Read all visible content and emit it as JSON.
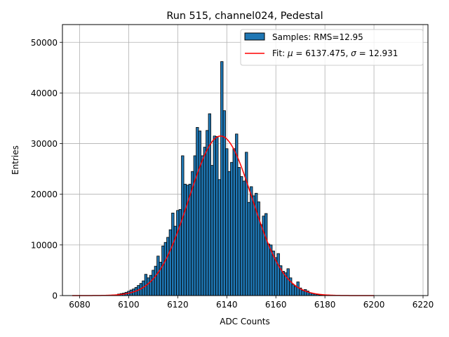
{
  "chart_data": {
    "type": "bar",
    "title": "Run 515, channel024, Pedestal",
    "xlabel": "ADC Counts",
    "ylabel": "Entries",
    "xlim": [
      6073.0,
      6222.0
    ],
    "ylim": [
      0,
      53500
    ],
    "x_ticks": [
      6080,
      6100,
      6120,
      6140,
      6160,
      6180,
      6200,
      6220
    ],
    "y_ticks": [
      0,
      10000,
      20000,
      30000,
      40000,
      50000
    ],
    "grid": true,
    "legend_position": "top-right",
    "legend": {
      "hist_label": "Samples: RMS=12.95",
      "fit_prefix": "Fit: ",
      "fit_mu_symbol": "μ",
      "fit_mu_value": " = 6137.475, ",
      "fit_sigma_symbol": "σ",
      "fit_sigma_value": " = 12.931"
    },
    "histogram": {
      "name": "Samples: RMS=12.95",
      "bin_width": 1,
      "x": [
        6096,
        6097,
        6098,
        6099,
        6100,
        6101,
        6102,
        6103,
        6104,
        6105,
        6106,
        6107,
        6108,
        6109,
        6110,
        6111,
        6112,
        6113,
        6114,
        6115,
        6116,
        6117,
        6118,
        6119,
        6120,
        6121,
        6122,
        6123,
        6124,
        6125,
        6126,
        6127,
        6128,
        6129,
        6130,
        6131,
        6132,
        6133,
        6134,
        6135,
        6136,
        6137,
        6138,
        6139,
        6140,
        6141,
        6142,
        6143,
        6144,
        6145,
        6146,
        6147,
        6148,
        6149,
        6150,
        6151,
        6152,
        6153,
        6154,
        6155,
        6156,
        6157,
        6158,
        6159,
        6160,
        6161,
        6162,
        6163,
        6164,
        6165,
        6166,
        6167,
        6168,
        6169,
        6170,
        6171,
        6172,
        6173,
        6174,
        6175,
        6176,
        6177,
        6178,
        6179,
        6180
      ],
      "values": [
        300,
        400,
        500,
        650,
        850,
        1100,
        1300,
        1600,
        2000,
        2400,
        2900,
        4200,
        3500,
        4000,
        5000,
        5800,
        7800,
        6600,
        9800,
        10500,
        11500,
        13000,
        16300,
        13700,
        16800,
        17000,
        27600,
        22000,
        21800,
        22000,
        24500,
        27600,
        33200,
        32500,
        27600,
        29300,
        32600,
        35900,
        25700,
        31500,
        31400,
        22900,
        46200,
        36500,
        29000,
        24500,
        26300,
        29000,
        31900,
        25300,
        23500,
        22600,
        28300,
        18400,
        21500,
        19700,
        20200,
        18500,
        14000,
        15700,
        16200,
        10200,
        10000,
        8800,
        7500,
        8300,
        5900,
        4800,
        4500,
        5300,
        3500,
        2200,
        1800,
        2700,
        1500,
        1000,
        1200,
        900,
        550,
        400,
        300,
        200,
        120,
        80,
        50
      ]
    },
    "fit": {
      "name": "Fit",
      "mu": 6137.475,
      "sigma": 12.931,
      "amplitude": 31500,
      "x_range": [
        6077,
        6200
      ],
      "color": "#ff0000"
    },
    "bar_color": "#1f77b4",
    "bar_edge_color": "#000000"
  }
}
